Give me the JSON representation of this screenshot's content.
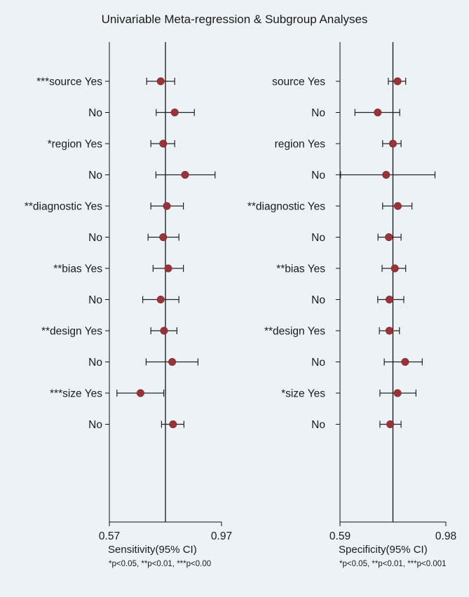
{
  "title": "Univariable Meta-regression & Subgroup Analyses",
  "chart_data": [
    {
      "type": "scatter",
      "xlabel": "Sensitivity(95% CI)",
      "xlim": [
        0.57,
        0.97
      ],
      "xticks": [
        "0.57",
        "0.97"
      ],
      "reference_line": 0.77,
      "note": "*p<0.05, **p<0.01, ***p<0.00",
      "rows": [
        {
          "label": "***source Yes",
          "est": 0.753,
          "lo": 0.703,
          "hi": 0.803
        },
        {
          "label": "No",
          "est": 0.803,
          "lo": 0.737,
          "hi": 0.873
        },
        {
          "label": "*region Yes",
          "est": 0.762,
          "lo": 0.718,
          "hi": 0.803
        },
        {
          "label": "No",
          "est": 0.84,
          "lo": 0.736,
          "hi": 0.947
        },
        {
          "label": "**diagnostic Yes",
          "est": 0.775,
          "lo": 0.718,
          "hi": 0.834
        },
        {
          "label": "No",
          "est": 0.762,
          "lo": 0.708,
          "hi": 0.818
        },
        {
          "label": "**bias Yes",
          "est": 0.78,
          "lo": 0.726,
          "hi": 0.834
        },
        {
          "label": "No",
          "est": 0.753,
          "lo": 0.689,
          "hi": 0.818
        },
        {
          "label": "**design Yes",
          "est": 0.765,
          "lo": 0.718,
          "hi": 0.811
        },
        {
          "label": "No",
          "est": 0.794,
          "lo": 0.701,
          "hi": 0.886
        },
        {
          "label": "***size Yes",
          "est": 0.681,
          "lo": 0.597,
          "hi": 0.764
        },
        {
          "label": "No",
          "est": 0.797,
          "lo": 0.756,
          "hi": 0.836
        }
      ]
    },
    {
      "type": "scatter",
      "xlabel": "Specificity(95% CI)",
      "xlim": [
        0.59,
        0.98
      ],
      "xticks": [
        "0.59",
        "0.98"
      ],
      "reference_line": 0.785,
      "note": "*p<0.05, **p<0.01, ***p<0.001",
      "rows": [
        {
          "label": "source Yes",
          "est": 0.802,
          "lo": 0.768,
          "hi": 0.832
        },
        {
          "label": "No",
          "est": 0.729,
          "lo": 0.645,
          "hi": 0.81
        },
        {
          "label": "region Yes",
          "est": 0.785,
          "lo": 0.747,
          "hi": 0.815
        },
        {
          "label": "No",
          "est": 0.76,
          "lo": 0.592,
          "hi": 0.94
        },
        {
          "label": "**diagnostic Yes",
          "est": 0.803,
          "lo": 0.747,
          "hi": 0.855
        },
        {
          "label": "No",
          "est": 0.77,
          "lo": 0.73,
          "hi": 0.815
        },
        {
          "label": "**bias Yes",
          "est": 0.792,
          "lo": 0.745,
          "hi": 0.832
        },
        {
          "label": "No",
          "est": 0.772,
          "lo": 0.729,
          "hi": 0.825
        },
        {
          "label": "**design Yes",
          "est": 0.772,
          "lo": 0.735,
          "hi": 0.809
        },
        {
          "label": "No",
          "est": 0.83,
          "lo": 0.753,
          "hi": 0.893
        },
        {
          "label": "*size Yes",
          "est": 0.802,
          "lo": 0.737,
          "hi": 0.87
        },
        {
          "label": "No",
          "est": 0.775,
          "lo": 0.737,
          "hi": 0.815
        }
      ]
    }
  ]
}
